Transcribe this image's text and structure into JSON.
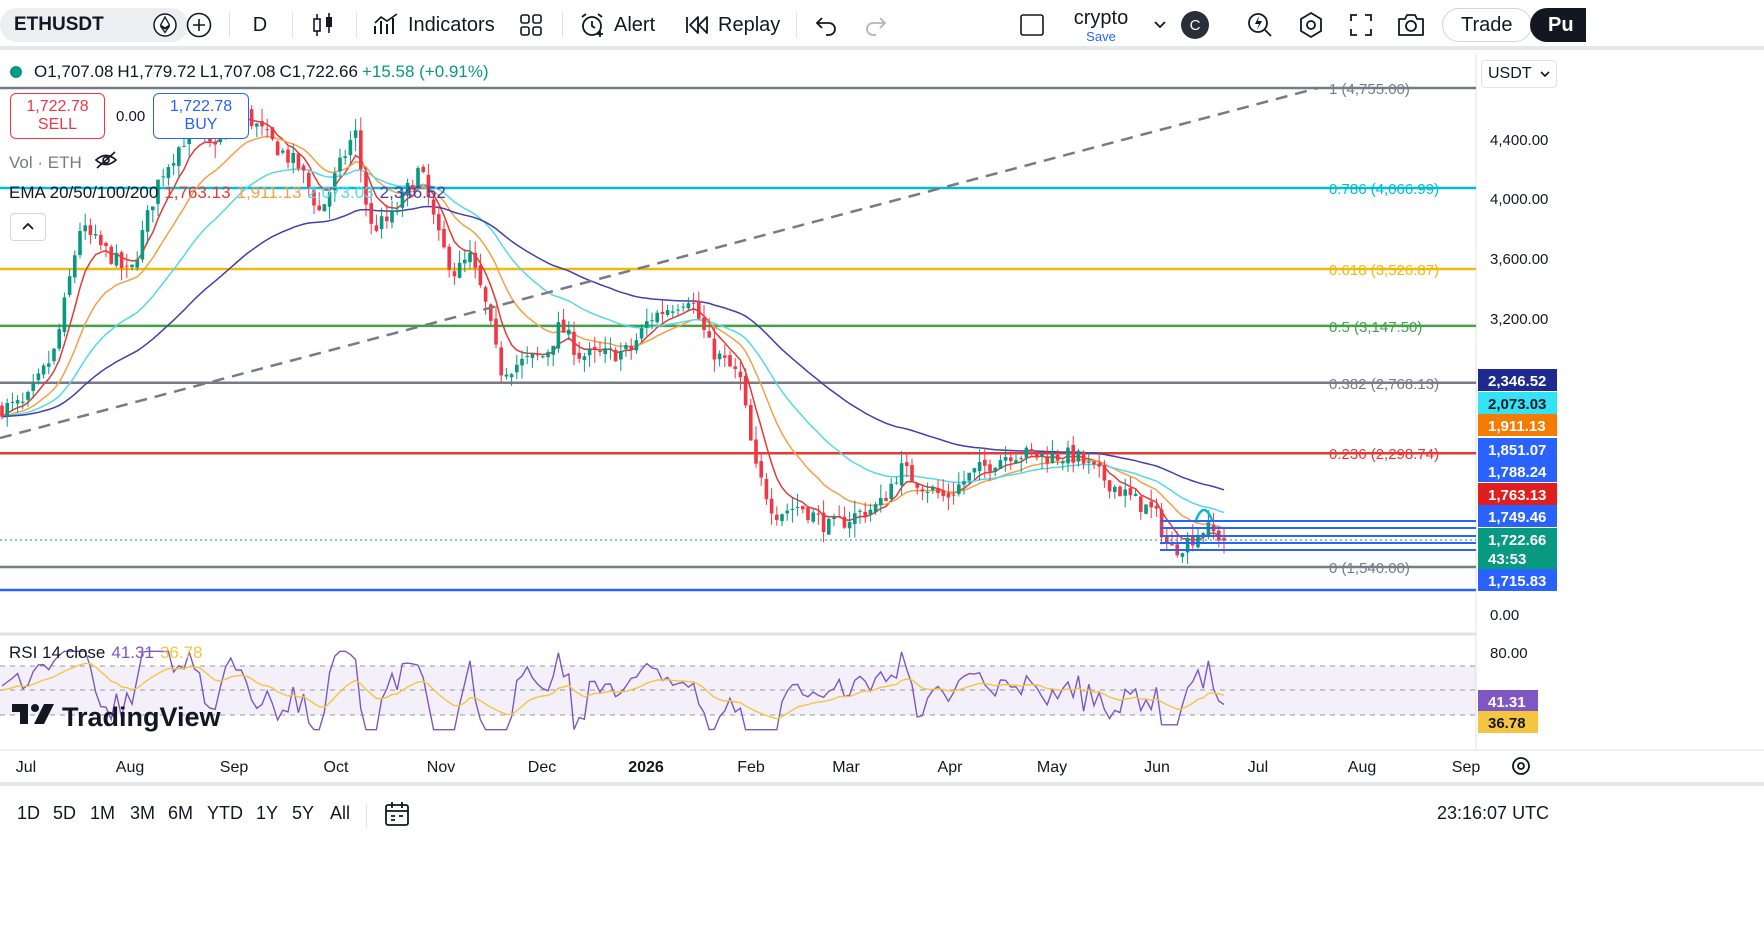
{
  "toolbar": {
    "symbol": "ETHUSDT",
    "interval": "D",
    "indicators_label": "Indicators",
    "alert_label": "Alert",
    "replay_label": "Replay",
    "layout_name": "crypto",
    "layout_save": "Save",
    "avatar_letter": "C",
    "trade_label": "Trade",
    "publish_label": "Pu"
  },
  "legend": {
    "open": "O1,707.08",
    "high": "H1,779.72",
    "low": "L1,707.08",
    "close": "C1,722.66",
    "change": "+15.58 (+0.91%)",
    "sell_price": "1,722.78",
    "sell_label": "SELL",
    "buy_price": "1,722.78",
    "buy_label": "BUY",
    "spread": "0.00",
    "volume_label": "Vol · ETH",
    "ema_label": "EMA 20/50/100/200",
    "ema_values": [
      "1,763.13",
      "1,911.13",
      "2,073.03",
      "2,346.52"
    ],
    "rsi_label": "RSI 14 close",
    "rsi_values": [
      "41.31",
      "36.78"
    ]
  },
  "currency": "USDT",
  "logo_text": "TradingView",
  "fib_levels": [
    {
      "label": "1 (4,755.00)",
      "price": 4755,
      "color": "#787b86"
    },
    {
      "label": "0.786 (4,066.99)",
      "price": 4066.99,
      "color": "#00bcd4"
    },
    {
      "label": "0.618 (3,526.87)",
      "price": 3526.87,
      "color": "#f0b90b"
    },
    {
      "label": "0.5 (3,147.50)",
      "price": 3147.5,
      "color": "#43a047"
    },
    {
      "label": "0.382 (2,768.13)",
      "price": 2768.13,
      "color": "#787b86"
    },
    {
      "label": "0.236 (2,298.74)",
      "price": 2298.74,
      "color": "#e53935"
    },
    {
      "label": "0 (1,540.00)",
      "price": 1540,
      "color": "#787b86"
    }
  ],
  "price_axis_labels": [
    "4,400.00",
    "4,000.00",
    "3,600.00",
    "3,200.00",
    "0.00"
  ],
  "price_tags": [
    {
      "text": "2,346.52",
      "bg": "#1e2a8f",
      "fg": "#ffffff"
    },
    {
      "text": "2,073.03",
      "bg": "#33e3f5",
      "fg": "#131722"
    },
    {
      "text": "1,911.13",
      "bg": "#f57c00",
      "fg": "#ffffff"
    },
    {
      "text": "1,851.07",
      "bg": "#2962ff",
      "fg": "#ffffff"
    },
    {
      "text": "1,788.24",
      "bg": "#2962ff",
      "fg": "#ffffff"
    },
    {
      "text": "1,763.13",
      "bg": "#e01e1e",
      "fg": "#ffffff"
    },
    {
      "text": "1,749.46",
      "bg": "#2962ff",
      "fg": "#ffffff"
    },
    {
      "text": "1,722.66",
      "bg": "#089981",
      "fg": "#ffffff"
    },
    {
      "text": "43:53",
      "bg": "#089981",
      "fg": "#ffffff"
    },
    {
      "text": "1,715.83",
      "bg": "#2962ff",
      "fg": "#ffffff"
    }
  ],
  "rsi_axis_labels": [
    "80.00"
  ],
  "rsi_tags": [
    {
      "text": "41.31",
      "bg": "#7e57c2",
      "fg": "#ffffff"
    },
    {
      "text": "36.78",
      "bg": "#f5c542",
      "fg": "#131722"
    }
  ],
  "time_axis_labels": [
    "Jul",
    "Aug",
    "Sep",
    "Oct",
    "Nov",
    "Dec",
    "2026",
    "Feb",
    "Mar",
    "Apr",
    "May",
    "Jun",
    "Jul",
    "Aug",
    "Sep"
  ],
  "ranges": [
    "1D",
    "5D",
    "1M",
    "3M",
    "6M",
    "YTD",
    "1Y",
    "5Y",
    "All"
  ],
  "clock": "23:16:07 UTC",
  "colors": {
    "up": "#089981",
    "down": "#f23645",
    "ema20": "#e53935",
    "ema50": "#f5a048",
    "ema100": "#55d8ea",
    "ema200": "#3f3fae",
    "rsi": "#7e57c2",
    "rsi_ma": "#f5c542"
  }
}
